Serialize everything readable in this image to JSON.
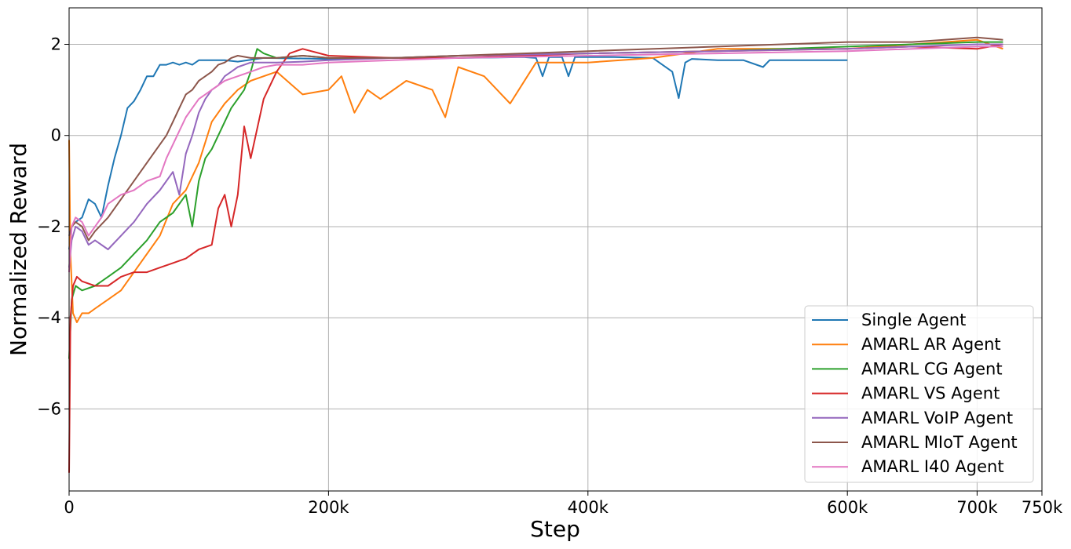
{
  "chart_data": {
    "type": "line",
    "xlabel": "Step",
    "ylabel": "Normalized Reward",
    "xlim": [
      0,
      750000
    ],
    "ylim": [
      -7.8,
      2.8
    ],
    "grid": true,
    "legend_position": "lower-right",
    "x_ticks": [
      {
        "value": 0,
        "label": "0"
      },
      {
        "value": 200000,
        "label": "200k"
      },
      {
        "value": 400000,
        "label": "400k"
      },
      {
        "value": 600000,
        "label": "600k"
      },
      {
        "value": 700000,
        "label": "700k"
      },
      {
        "value": 750000,
        "label": "750k"
      }
    ],
    "y_ticks": [
      {
        "value": 2,
        "label": "2"
      },
      {
        "value": 0,
        "label": "0"
      },
      {
        "value": -2,
        "label": "−2"
      },
      {
        "value": -4,
        "label": "−4"
      },
      {
        "value": -6,
        "label": "−6"
      }
    ],
    "series": [
      {
        "name": "Single Agent",
        "color": "#1f77b4",
        "x": [
          0,
          2000,
          5000,
          10000,
          15000,
          20000,
          25000,
          30000,
          35000,
          40000,
          45000,
          50000,
          55000,
          60000,
          65000,
          70000,
          75000,
          80000,
          85000,
          90000,
          95000,
          100000,
          110000,
          120000,
          130000,
          150000,
          200000,
          250000,
          300000,
          350000,
          360000,
          365000,
          370000,
          380000,
          385000,
          390000,
          400000,
          420000,
          450000,
          465000,
          470000,
          475000,
          480000,
          500000,
          520000,
          535000,
          540000,
          560000,
          580000,
          600000
        ],
        "y": [
          -2.5,
          -2.0,
          -1.9,
          -1.8,
          -1.4,
          -1.5,
          -1.8,
          -1.1,
          -0.5,
          0.0,
          0.6,
          0.75,
          1.0,
          1.3,
          1.3,
          1.55,
          1.55,
          1.6,
          1.55,
          1.6,
          1.55,
          1.65,
          1.65,
          1.65,
          1.62,
          1.7,
          1.68,
          1.7,
          1.7,
          1.72,
          1.7,
          1.3,
          1.72,
          1.72,
          1.3,
          1.72,
          1.72,
          1.72,
          1.7,
          1.4,
          0.82,
          1.6,
          1.68,
          1.65,
          1.65,
          1.5,
          1.65,
          1.65,
          1.65,
          1.65
        ]
      },
      {
        "name": "AMARL AR Agent",
        "color": "#ff7f0e",
        "x": [
          0,
          1000,
          3000,
          6000,
          10000,
          15000,
          20000,
          25000,
          30000,
          40000,
          50000,
          60000,
          70000,
          80000,
          90000,
          100000,
          110000,
          120000,
          130000,
          140000,
          150000,
          160000,
          180000,
          200000,
          210000,
          220000,
          230000,
          240000,
          260000,
          280000,
          290000,
          300000,
          320000,
          340000,
          360000,
          380000,
          400000,
          450000,
          500000,
          550000,
          600000,
          650000,
          700000,
          720000
        ],
        "y": [
          -0.1,
          -2.6,
          -3.9,
          -4.1,
          -3.9,
          -3.9,
          -3.8,
          -3.7,
          -3.6,
          -3.4,
          -3.0,
          -2.6,
          -2.2,
          -1.5,
          -1.2,
          -0.6,
          0.3,
          0.7,
          1.0,
          1.2,
          1.3,
          1.4,
          0.9,
          1.0,
          1.3,
          0.5,
          1.0,
          0.8,
          1.2,
          1.0,
          0.4,
          1.5,
          1.3,
          0.7,
          1.6,
          1.6,
          1.6,
          1.7,
          1.9,
          1.9,
          1.9,
          2.0,
          2.1,
          1.9
        ]
      },
      {
        "name": "AMARL CG Agent",
        "color": "#2ca02c",
        "x": [
          0,
          2000,
          5000,
          10000,
          20000,
          30000,
          40000,
          50000,
          60000,
          70000,
          80000,
          90000,
          95000,
          100000,
          105000,
          110000,
          115000,
          120000,
          125000,
          130000,
          135000,
          140000,
          145000,
          150000,
          160000,
          180000,
          200000,
          250000,
          300000,
          400000,
          500000,
          600000,
          650000,
          700000,
          720000
        ],
        "y": [
          -4.9,
          -3.6,
          -3.3,
          -3.4,
          -3.3,
          -3.1,
          -2.9,
          -2.6,
          -2.3,
          -1.9,
          -1.7,
          -1.3,
          -2.0,
          -1.0,
          -0.5,
          -0.3,
          0.0,
          0.3,
          0.6,
          0.8,
          1.0,
          1.4,
          1.9,
          1.8,
          1.7,
          1.75,
          1.7,
          1.7,
          1.75,
          1.8,
          1.85,
          1.95,
          2.0,
          2.05,
          2.05
        ]
      },
      {
        "name": "AMARL VS Agent",
        "color": "#d62728",
        "x": [
          0,
          1000,
          3000,
          6000,
          10000,
          20000,
          30000,
          40000,
          50000,
          60000,
          70000,
          80000,
          90000,
          100000,
          110000,
          115000,
          120000,
          125000,
          130000,
          135000,
          140000,
          150000,
          160000,
          170000,
          180000,
          200000,
          250000,
          300000,
          400000,
          500000,
          600000,
          650000,
          700000,
          720000
        ],
        "y": [
          -7.4,
          -4.0,
          -3.3,
          -3.1,
          -3.2,
          -3.3,
          -3.3,
          -3.1,
          -3.0,
          -3.0,
          -2.9,
          -2.8,
          -2.7,
          -2.5,
          -2.4,
          -1.6,
          -1.3,
          -2.0,
          -1.3,
          0.2,
          -0.5,
          0.8,
          1.4,
          1.8,
          1.9,
          1.75,
          1.7,
          1.7,
          1.8,
          1.85,
          1.9,
          1.95,
          1.9,
          2.0
        ]
      },
      {
        "name": "AMARL VoIP Agent",
        "color": "#9467bd",
        "x": [
          0,
          2000,
          5000,
          10000,
          15000,
          20000,
          30000,
          40000,
          50000,
          60000,
          70000,
          80000,
          85000,
          90000,
          95000,
          100000,
          105000,
          110000,
          115000,
          120000,
          125000,
          130000,
          140000,
          150000,
          160000,
          180000,
          200000,
          250000,
          300000,
          400000,
          500000,
          600000,
          700000,
          720000
        ],
        "y": [
          -2.9,
          -2.3,
          -2.0,
          -2.1,
          -2.4,
          -2.3,
          -2.5,
          -2.2,
          -1.9,
          -1.5,
          -1.2,
          -0.8,
          -1.3,
          -0.4,
          0.0,
          0.5,
          0.8,
          1.0,
          1.1,
          1.3,
          1.4,
          1.5,
          1.6,
          1.6,
          1.6,
          1.62,
          1.65,
          1.7,
          1.75,
          1.8,
          1.85,
          1.9,
          2.0,
          2.0
        ]
      },
      {
        "name": "AMARL MIoT Agent",
        "color": "#8c564b",
        "x": [
          0,
          2000,
          5000,
          10000,
          15000,
          20000,
          30000,
          40000,
          50000,
          60000,
          70000,
          75000,
          80000,
          85000,
          90000,
          95000,
          100000,
          105000,
          110000,
          115000,
          120000,
          125000,
          130000,
          140000,
          150000,
          160000,
          180000,
          200000,
          250000,
          300000,
          400000,
          500000,
          600000,
          650000,
          700000,
          720000
        ],
        "y": [
          -2.2,
          -2.0,
          -1.9,
          -2.0,
          -2.3,
          -2.1,
          -1.8,
          -1.4,
          -1.0,
          -0.6,
          -0.2,
          0.0,
          0.3,
          0.6,
          0.9,
          1.0,
          1.2,
          1.3,
          1.4,
          1.55,
          1.6,
          1.7,
          1.75,
          1.7,
          1.7,
          1.7,
          1.75,
          1.7,
          1.7,
          1.75,
          1.85,
          1.95,
          2.05,
          2.05,
          2.15,
          2.1
        ]
      },
      {
        "name": "AMARL I40 Agent",
        "color": "#e377c2",
        "x": [
          0,
          2000,
          5000,
          10000,
          15000,
          20000,
          25000,
          30000,
          40000,
          50000,
          60000,
          70000,
          75000,
          80000,
          85000,
          90000,
          95000,
          100000,
          105000,
          110000,
          115000,
          120000,
          125000,
          130000,
          140000,
          150000,
          160000,
          180000,
          200000,
          250000,
          300000,
          400000,
          500000,
          600000,
          700000,
          720000
        ],
        "y": [
          -3.0,
          -2.0,
          -1.8,
          -1.9,
          -2.2,
          -2.0,
          -1.8,
          -1.5,
          -1.3,
          -1.2,
          -1.0,
          -0.9,
          -0.5,
          -0.2,
          0.1,
          0.4,
          0.6,
          0.8,
          0.9,
          1.0,
          1.1,
          1.2,
          1.25,
          1.3,
          1.4,
          1.5,
          1.55,
          1.55,
          1.6,
          1.65,
          1.7,
          1.75,
          1.8,
          1.85,
          1.95,
          1.95
        ]
      }
    ]
  }
}
